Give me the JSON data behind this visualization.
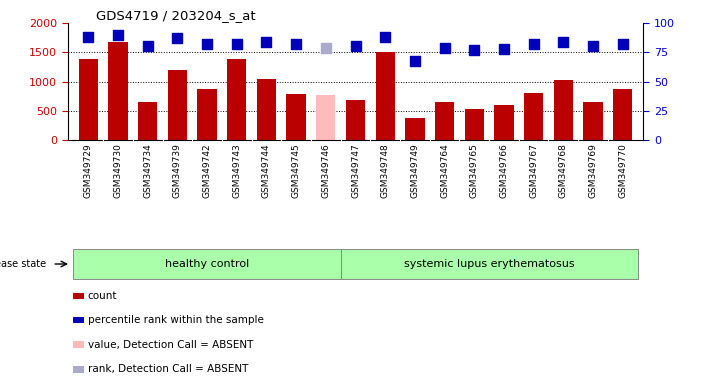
{
  "title": "GDS4719 / 203204_s_at",
  "samples": [
    "GSM349729",
    "GSM349730",
    "GSM349734",
    "GSM349739",
    "GSM349742",
    "GSM349743",
    "GSM349744",
    "GSM349745",
    "GSM349746",
    "GSM349747",
    "GSM349748",
    "GSM349749",
    "GSM349764",
    "GSM349765",
    "GSM349766",
    "GSM349767",
    "GSM349768",
    "GSM349769",
    "GSM349770"
  ],
  "counts": [
    1390,
    1680,
    645,
    1205,
    880,
    1390,
    1040,
    780,
    770,
    690,
    1510,
    380,
    650,
    540,
    600,
    810,
    1030,
    655,
    870
  ],
  "absent_bar_indices": [
    8
  ],
  "percentile_ranks": [
    88,
    90,
    80,
    87,
    82,
    82,
    84,
    82,
    79,
    80,
    88,
    68,
    79,
    77,
    78,
    82,
    84,
    80,
    82
  ],
  "absent_rank_indices": [
    8
  ],
  "bar_color_normal": "#bb0000",
  "bar_color_absent": "#ffbbbb",
  "dot_color_normal": "#0000bb",
  "dot_color_absent": "#aaaacc",
  "group1_label": "healthy control",
  "group2_label": "systemic lupus erythematosus",
  "group1_count": 9,
  "disease_state_label": "disease state",
  "ylim_left": [
    0,
    2000
  ],
  "ylim_right": [
    0,
    100
  ],
  "yticks_left": [
    0,
    500,
    1000,
    1500,
    2000
  ],
  "yticks_right": [
    0,
    25,
    50,
    75,
    100
  ],
  "left_axis_color": "#cc0000",
  "right_axis_color": "#0000cc",
  "legend_items": [
    {
      "label": "count",
      "color": "#bb0000"
    },
    {
      "label": "percentile rank within the sample",
      "color": "#0000bb"
    },
    {
      "label": "value, Detection Call = ABSENT",
      "color": "#ffbbbb"
    },
    {
      "label": "rank, Detection Call = ABSENT",
      "color": "#aaaacc"
    }
  ],
  "background_color": "#ffffff",
  "plot_bg_color": "#ffffff",
  "xtick_bg_color": "#dddddd",
  "group_bg_color": "#aaffaa",
  "dot_size": 55,
  "bar_width": 0.65,
  "grid_color": "#000000",
  "grid_lw": 0.7,
  "grid_yticks": [
    500,
    1000,
    1500
  ]
}
